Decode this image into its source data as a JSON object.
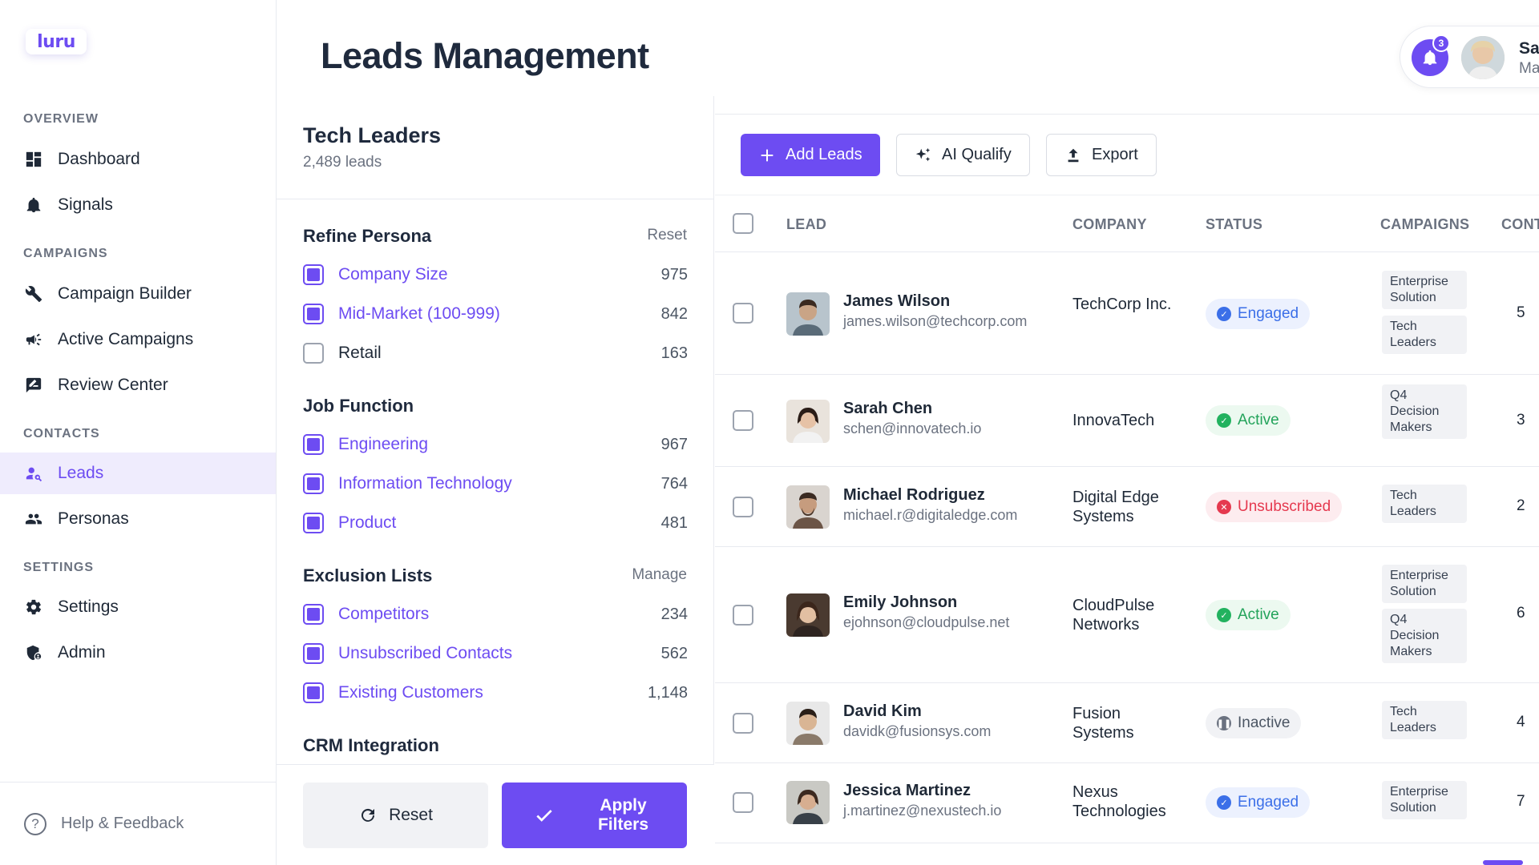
{
  "app": {
    "logo_text": "luru"
  },
  "sidebar": {
    "sections": [
      {
        "title": "OVERVIEW",
        "items": [
          {
            "label": "Dashboard",
            "icon": "dashboard-icon"
          },
          {
            "label": "Signals",
            "icon": "bell-icon"
          }
        ]
      },
      {
        "title": "CAMPAIGNS",
        "items": [
          {
            "label": "Campaign Builder",
            "icon": "wrench-icon"
          },
          {
            "label": "Active Campaigns",
            "icon": "megaphone-icon"
          },
          {
            "label": "Review Center",
            "icon": "review-icon"
          }
        ]
      },
      {
        "title": "CONTACTS",
        "items": [
          {
            "label": "Leads",
            "icon": "lead-search-icon",
            "active": true
          },
          {
            "label": "Personas",
            "icon": "people-icon"
          }
        ]
      },
      {
        "title": "SETTINGS",
        "items": [
          {
            "label": "Settings",
            "icon": "gear-icon"
          },
          {
            "label": "Admin",
            "icon": "admin-icon"
          }
        ]
      }
    ],
    "help_label": "Help & Feedback"
  },
  "header": {
    "title": "Leads Management",
    "notifications_count": "3",
    "user_name": "Sa",
    "user_role": "Ma"
  },
  "filters": {
    "title": "Tech Leaders",
    "count": "2,489 leads",
    "groups": [
      {
        "title": "Refine Persona",
        "action": "Reset",
        "options": [
          {
            "label": "Company Size",
            "count": "975",
            "checked": true
          },
          {
            "label": "Mid-Market (100-999)",
            "count": "842",
            "checked": true
          },
          {
            "label": "Retail",
            "count": "163",
            "checked": false
          }
        ]
      },
      {
        "title": "Job Function",
        "action": "",
        "options": [
          {
            "label": "Engineering",
            "count": "967",
            "checked": true
          },
          {
            "label": "Information Technology",
            "count": "764",
            "checked": true
          },
          {
            "label": "Product",
            "count": "481",
            "checked": true
          }
        ]
      },
      {
        "title": "Exclusion Lists",
        "action": "Manage",
        "options": [
          {
            "label": "Competitors",
            "count": "234",
            "checked": true
          },
          {
            "label": "Unsubscribed Contacts",
            "count": "562",
            "checked": true
          },
          {
            "label": "Existing Customers",
            "count": "1,148",
            "checked": true
          }
        ]
      },
      {
        "title": "CRM Integration",
        "action": "",
        "options": []
      }
    ],
    "reset_label": "Reset",
    "apply_label": "Apply Filters"
  },
  "toolbar": {
    "add_label": "Add Leads",
    "qualify_label": "AI Qualify",
    "export_label": "Export"
  },
  "table": {
    "columns": [
      "LEAD",
      "COMPANY",
      "STATUS",
      "CAMPAIGNS",
      "CONT"
    ],
    "rows": [
      {
        "name": "James Wilson",
        "email": "james.wilson@techcorp.com",
        "company": "TechCorp Inc.",
        "status": "Engaged",
        "status_kind": "engaged",
        "campaigns": [
          "Enterprise Solution",
          "Tech Leaders"
        ],
        "contacts": "5"
      },
      {
        "name": "Sarah Chen",
        "email": "schen@innovatech.io",
        "company": "InnovaTech",
        "status": "Active",
        "status_kind": "active",
        "campaigns": [
          "Q4 Decision Makers"
        ],
        "contacts": "3"
      },
      {
        "name": "Michael Rodriguez",
        "email": "michael.r@digitaledge.com",
        "company": "Digital Edge Systems",
        "status": "Unsubscribed",
        "status_kind": "unsub",
        "campaigns": [
          "Tech Leaders"
        ],
        "contacts": "2"
      },
      {
        "name": "Emily Johnson",
        "email": "ejohnson@cloudpulse.net",
        "company": "CloudPulse Networks",
        "status": "Active",
        "status_kind": "active",
        "campaigns": [
          "Enterprise Solution",
          "Q4 Decision Makers"
        ],
        "contacts": "6"
      },
      {
        "name": "David Kim",
        "email": "davidk@fusionsys.com",
        "company": "Fusion Systems",
        "status": "Inactive",
        "status_kind": "inactive",
        "campaigns": [
          "Tech Leaders"
        ],
        "contacts": "4"
      },
      {
        "name": "Jessica Martinez",
        "email": "j.martinez@nexustech.io",
        "company": "Nexus Technologies",
        "status": "Engaged",
        "status_kind": "engaged",
        "campaigns": [
          "Enterprise Solution"
        ],
        "contacts": "7"
      }
    ]
  },
  "colors": {
    "accent": "#6d4cf2",
    "engaged": "#3b6fe8",
    "active": "#22a35a",
    "unsubscribed": "#e5394f",
    "inactive": "#6b7280"
  }
}
